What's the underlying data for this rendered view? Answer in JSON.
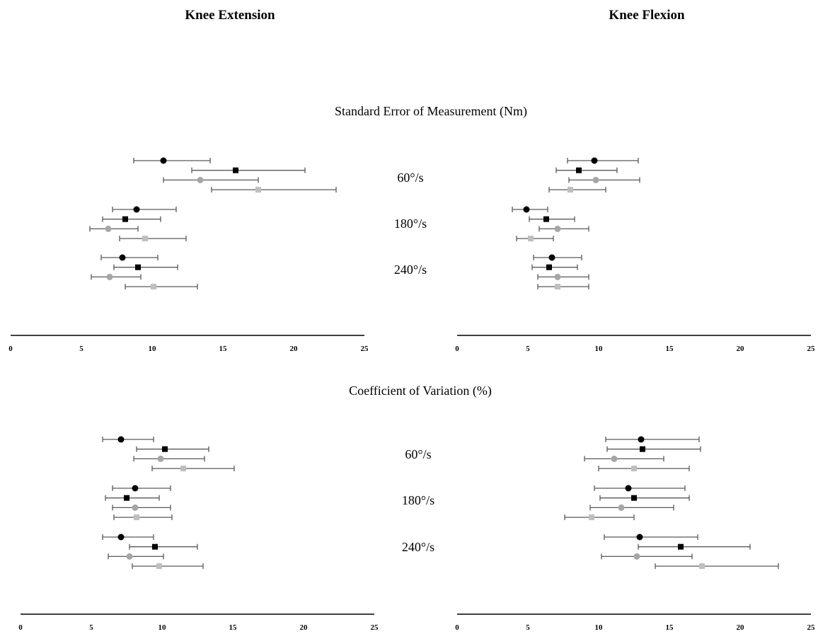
{
  "chart_data": {
    "type": "scatter",
    "column_titles": [
      "Knee Extension",
      "Knee Flexion"
    ],
    "section_titles": [
      "Standard Error of Measurement (Nm)",
      "Coefficient of Variation (%)"
    ],
    "speed_labels": [
      "60°/s",
      "180°/s",
      "240°/s"
    ],
    "x_ticks": [
      "0",
      "5",
      "10",
      "15",
      "20",
      "25"
    ],
    "xlim": [
      0,
      25
    ],
    "series_styles": [
      {
        "marker": "circle",
        "color": "#000000"
      },
      {
        "marker": "square",
        "color": "#000000"
      },
      {
        "marker": "circle",
        "color": "#a6a6a6"
      },
      {
        "marker": "square",
        "color": "#bfbfbf"
      }
    ],
    "panels": [
      {
        "column": "Knee Extension",
        "section": "Standard Error of Measurement (Nm)",
        "groups": [
          {
            "speed": "60°/s",
            "points": [
              {
                "value": 10.8,
                "low": 8.7,
                "high": 14.1
              },
              {
                "value": 15.9,
                "low": 12.8,
                "high": 20.8
              },
              {
                "value": 13.4,
                "low": 10.8,
                "high": 17.5
              },
              {
                "value": 17.5,
                "low": 14.2,
                "high": 23.0
              }
            ]
          },
          {
            "speed": "180°/s",
            "points": [
              {
                "value": 8.9,
                "low": 7.2,
                "high": 11.7
              },
              {
                "value": 8.1,
                "low": 6.5,
                "high": 10.6
              },
              {
                "value": 6.9,
                "low": 5.6,
                "high": 9.0
              },
              {
                "value": 9.5,
                "low": 7.7,
                "high": 12.4
              }
            ]
          },
          {
            "speed": "240°/s",
            "points": [
              {
                "value": 7.9,
                "low": 6.4,
                "high": 10.4
              },
              {
                "value": 9.0,
                "low": 7.3,
                "high": 11.8
              },
              {
                "value": 7.0,
                "low": 5.7,
                "high": 9.2
              },
              {
                "value": 10.1,
                "low": 8.1,
                "high": 13.2
              }
            ]
          }
        ]
      },
      {
        "column": "Knee Flexion",
        "section": "Standard Error of Measurement (Nm)",
        "groups": [
          {
            "speed": "60°/s",
            "points": [
              {
                "value": 9.7,
                "low": 7.8,
                "high": 12.8
              },
              {
                "value": 8.6,
                "low": 7.0,
                "high": 11.3
              },
              {
                "value": 9.8,
                "low": 7.9,
                "high": 12.9
              },
              {
                "value": 8.0,
                "low": 6.5,
                "high": 10.5
              }
            ]
          },
          {
            "speed": "180°/s",
            "points": [
              {
                "value": 4.9,
                "low": 3.9,
                "high": 6.4
              },
              {
                "value": 6.3,
                "low": 5.1,
                "high": 8.3
              },
              {
                "value": 7.1,
                "low": 5.8,
                "high": 9.3
              },
              {
                "value": 5.2,
                "low": 4.2,
                "high": 6.8
              }
            ]
          },
          {
            "speed": "240°/s",
            "points": [
              {
                "value": 6.7,
                "low": 5.4,
                "high": 8.8
              },
              {
                "value": 6.5,
                "low": 5.3,
                "high": 8.5
              },
              {
                "value": 7.1,
                "low": 5.7,
                "high": 9.3
              },
              {
                "value": 7.1,
                "low": 5.7,
                "high": 9.3
              }
            ]
          }
        ]
      },
      {
        "column": "Knee Extension",
        "section": "Coefficient of Variation (%)",
        "groups": [
          {
            "speed": "60°/s",
            "points": [
              {
                "value": 7.1,
                "low": 5.8,
                "high": 9.4
              },
              {
                "value": 10.2,
                "low": 8.2,
                "high": 13.3
              },
              {
                "value": 9.9,
                "low": 8.0,
                "high": 13.0
              },
              {
                "value": 11.5,
                "low": 9.3,
                "high": 15.1
              }
            ]
          },
          {
            "speed": "180°/s",
            "points": [
              {
                "value": 8.1,
                "low": 6.5,
                "high": 10.6
              },
              {
                "value": 7.5,
                "low": 6.0,
                "high": 9.8
              },
              {
                "value": 8.1,
                "low": 6.5,
                "high": 10.6
              },
              {
                "value": 8.2,
                "low": 6.6,
                "high": 10.7
              }
            ]
          },
          {
            "speed": "240°/s",
            "points": [
              {
                "value": 7.1,
                "low": 5.8,
                "high": 9.4
              },
              {
                "value": 9.5,
                "low": 7.7,
                "high": 12.5
              },
              {
                "value": 7.7,
                "low": 6.2,
                "high": 10.1
              },
              {
                "value": 9.8,
                "low": 7.9,
                "high": 12.9
              }
            ]
          }
        ]
      },
      {
        "column": "Knee Flexion",
        "section": "Coefficient of Variation (%)",
        "groups": [
          {
            "speed": "60°/s",
            "points": [
              {
                "value": 13.0,
                "low": 10.5,
                "high": 17.1
              },
              {
                "value": 13.1,
                "low": 10.6,
                "high": 17.2
              },
              {
                "value": 11.1,
                "low": 9.0,
                "high": 14.6
              },
              {
                "value": 12.5,
                "low": 10.0,
                "high": 16.4
              }
            ]
          },
          {
            "speed": "180°/s",
            "points": [
              {
                "value": 12.1,
                "low": 9.7,
                "high": 16.1
              },
              {
                "value": 12.5,
                "low": 10.1,
                "high": 16.4
              },
              {
                "value": 11.6,
                "low": 9.4,
                "high": 15.3
              },
              {
                "value": 9.5,
                "low": 7.6,
                "high": 12.5
              }
            ]
          },
          {
            "speed": "240°/s",
            "points": [
              {
                "value": 12.9,
                "low": 10.4,
                "high": 17.0
              },
              {
                "value": 15.8,
                "low": 12.8,
                "high": 20.7
              },
              {
                "value": 12.7,
                "low": 10.2,
                "high": 16.6
              },
              {
                "value": 17.3,
                "low": 14.0,
                "high": 22.7
              }
            ]
          }
        ]
      }
    ]
  }
}
